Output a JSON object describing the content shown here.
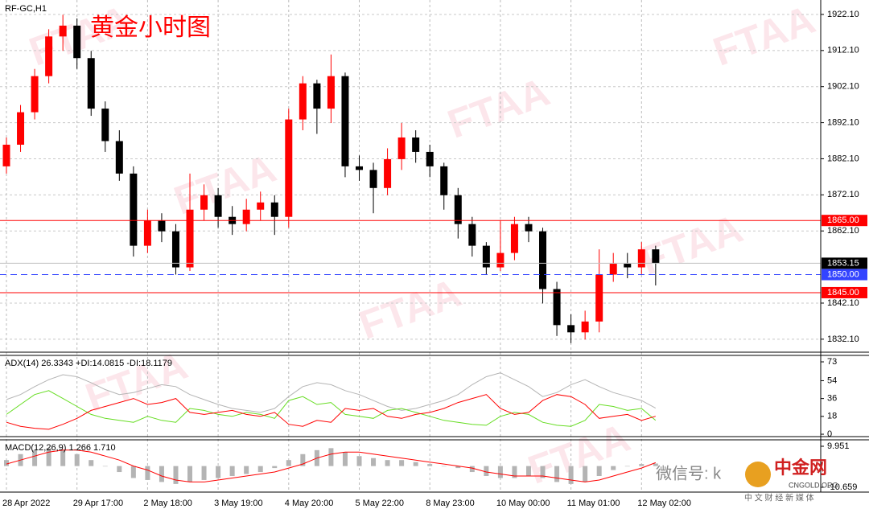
{
  "chart_data": [
    {
      "type": "candlestick",
      "title": "RF-GC,H1",
      "subtitle": "黄金小时图",
      "watermark": "FTAA",
      "up_color": "#ff0000",
      "down_color": "#000000",
      "grid": true,
      "categories": [
        "28 Apr 2022",
        null,
        null,
        null,
        null,
        "29 Apr 17:00",
        null,
        null,
        null,
        null,
        "2 May 18:00",
        null,
        null,
        null,
        null,
        "3 May 19:00",
        null,
        null,
        null,
        null,
        "4 May 20:00",
        null,
        null,
        null,
        null,
        "5 May 22:00",
        null,
        null,
        null,
        null,
        "8 May 23:00",
        null,
        null,
        null,
        null,
        "10 May 00:00",
        null,
        null,
        null,
        null,
        "11 May 01:00",
        null,
        null,
        null,
        null,
        "12 May 02:00",
        null
      ],
      "open": [
        1880,
        1886,
        1895,
        1905,
        1916,
        1919,
        1910,
        1896,
        1887,
        1878,
        1858,
        1865,
        1862,
        1852,
        1868,
        1872,
        1866,
        1864,
        1868,
        1870,
        1866,
        1893,
        1903,
        1896,
        1905,
        1880,
        1879,
        1874,
        1882,
        1888,
        1884,
        1880,
        1872,
        1864,
        1858,
        1852,
        1856,
        1864,
        1862,
        1846,
        1836,
        1834,
        1837,
        1850,
        1853,
        1852,
        1857
      ],
      "high": [
        1888,
        1897,
        1907,
        1918,
        1922,
        1921,
        1912,
        1898,
        1890,
        1880,
        1868,
        1867,
        1864,
        1878,
        1875,
        1874,
        1869,
        1871,
        1873,
        1872,
        1896,
        1905,
        1904,
        1911,
        1906,
        1883,
        1881,
        1885,
        1892,
        1890,
        1886,
        1881,
        1874,
        1866,
        1859,
        1865,
        1866,
        1866,
        1863,
        1848,
        1839,
        1840,
        1857,
        1856,
        1856,
        1859,
        1858
      ],
      "low": [
        1878,
        1884,
        1893,
        1903,
        1912,
        1907,
        1894,
        1884,
        1876,
        1855,
        1856,
        1859,
        1850,
        1851,
        1865,
        1863,
        1861,
        1862,
        1865,
        1861,
        1863,
        1890,
        1889,
        1892,
        1877,
        1876,
        1867,
        1872,
        1879,
        1881,
        1877,
        1868,
        1860,
        1855,
        1850,
        1851,
        1854,
        1859,
        1842,
        1833,
        1831,
        1832,
        1834,
        1848,
        1849,
        1850,
        1847
      ],
      "close": [
        1886,
        1895,
        1905,
        1916,
        1919,
        1910,
        1896,
        1887,
        1878,
        1858,
        1865,
        1862,
        1852,
        1868,
        1872,
        1866,
        1864,
        1868,
        1870,
        1866,
        1893,
        1903,
        1896,
        1905,
        1880,
        1879,
        1874,
        1882,
        1888,
        1884,
        1880,
        1872,
        1864,
        1858,
        1852,
        1856,
        1864,
        1862,
        1846,
        1836,
        1834,
        1837,
        1850,
        1853,
        1852,
        1857,
        1853.15
      ],
      "ylim": [
        1828.5,
        1926.1
      ],
      "yticks": [
        {
          "value": 1922.1,
          "label": "1922.10"
        },
        {
          "value": 1912.1,
          "label": "1912.10"
        },
        {
          "value": 1902.1,
          "label": "1902.10"
        },
        {
          "value": 1892.1,
          "label": "1892.10"
        },
        {
          "value": 1882.1,
          "label": "1882.10"
        },
        {
          "value": 1872.1,
          "label": "1872.10"
        },
        {
          "value": 1862.1,
          "label": "1862.10"
        },
        {
          "value": 1842.1,
          "label": "1842.10"
        },
        {
          "value": 1832.1,
          "label": "1832.10"
        }
      ],
      "levels": [
        {
          "value": 1865,
          "label": "1865.00",
          "color": "#ff0000",
          "style": "solid"
        },
        {
          "value": 1850,
          "label": "1850.00",
          "color": "#3344ff",
          "style": "dashed"
        },
        {
          "value": 1845,
          "label": "1845.00",
          "color": "#ff0000",
          "style": "solid"
        }
      ],
      "current": {
        "value": 1853.15,
        "label": "1853.15",
        "color": "#000000"
      },
      "overlay": [
        "微信号: k",
        "中金网",
        "CNGOLD.ORG",
        "中 文 财 经 新 媒 体"
      ]
    },
    {
      "type": "line",
      "title": "ADX(14) 26.3343 +DI:14.0815 -DI:18.1179",
      "series": [
        {
          "color": "#b4b4b4",
          "values": [
            35,
            40,
            48,
            55,
            60,
            58,
            52,
            45,
            40,
            42,
            46,
            50,
            48,
            40,
            35,
            30,
            26,
            24,
            22,
            26,
            38,
            48,
            52,
            50,
            44,
            40,
            34,
            28,
            24,
            26,
            30,
            34,
            40,
            50,
            58,
            62,
            55,
            48,
            38,
            42,
            50,
            55,
            48,
            42,
            38,
            34,
            26.3343
          ]
        },
        {
          "color": "#66dd22",
          "values": [
            20,
            30,
            40,
            44,
            36,
            28,
            20,
            16,
            14,
            12,
            18,
            14,
            12,
            26,
            24,
            20,
            18,
            22,
            20,
            16,
            34,
            38,
            30,
            32,
            20,
            18,
            16,
            24,
            26,
            22,
            18,
            14,
            12,
            10,
            9,
            18,
            22,
            20,
            12,
            9,
            8,
            14,
            30,
            28,
            24,
            26,
            14.0815
          ]
        },
        {
          "color": "#ff0000",
          "values": [
            12,
            8,
            6,
            5,
            10,
            16,
            24,
            28,
            32,
            36,
            30,
            32,
            36,
            22,
            20,
            22,
            24,
            20,
            18,
            22,
            10,
            8,
            14,
            12,
            26,
            24,
            26,
            18,
            16,
            20,
            22,
            26,
            32,
            36,
            40,
            26,
            20,
            22,
            34,
            40,
            38,
            30,
            16,
            18,
            20,
            14,
            18.1179
          ]
        }
      ],
      "ylim": [
        -2.4,
        79.5
      ],
      "yticks": [
        73,
        54,
        36,
        18,
        0
      ]
    },
    {
      "type": "macd",
      "title": "MACD(12,26,9) 1.266 1.710",
      "series": [
        {
          "color": "#b4b4b4",
          "values": [
            3,
            6,
            8,
            9,
            8,
            6,
            3,
            0,
            -3,
            -6,
            -7,
            -8,
            -9,
            -8,
            -7,
            -6,
            -5,
            -4,
            -3,
            -1,
            3,
            6,
            8,
            9,
            7,
            5,
            4,
            3,
            3,
            2,
            1,
            0,
            -1,
            -3,
            -5,
            -6,
            -6,
            -5,
            -6,
            -8,
            -9,
            -8,
            -5,
            -2,
            0,
            1,
            1.266
          ]
        },
        {
          "color": "#ff0000",
          "values": [
            1,
            3,
            5,
            7,
            8,
            8,
            7,
            5,
            3,
            0,
            -2,
            -5,
            -7,
            -8,
            -8,
            -7,
            -6,
            -5,
            -4,
            -3,
            -1,
            1,
            4,
            6,
            7,
            7,
            6,
            5,
            4,
            3,
            2,
            1,
            0,
            -1,
            -3,
            -4,
            -5,
            -5,
            -5,
            -6,
            -7,
            -8,
            -7,
            -5,
            -3,
            -1,
            1.71
          ]
        }
      ],
      "ylim": [
        -13.08,
        13.18
      ],
      "yticks": [
        9.951,
        -10.659
      ]
    }
  ]
}
